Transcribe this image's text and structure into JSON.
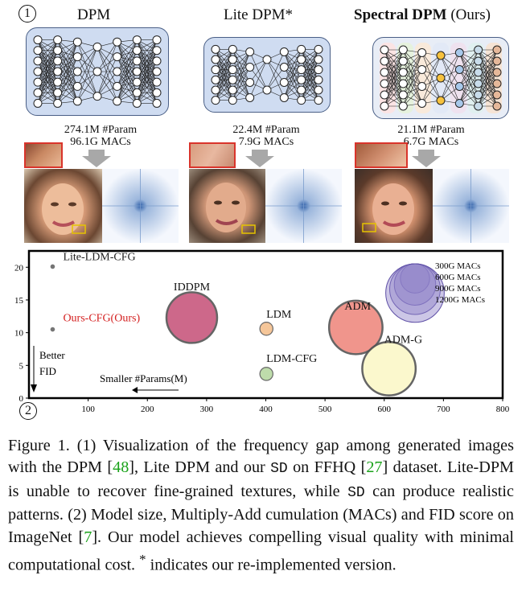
{
  "markers": {
    "part1": "1",
    "part2": "2"
  },
  "models": [
    {
      "title": "DPM",
      "params": "274.1M #Param",
      "macs": "96.1G MACs"
    },
    {
      "title": "Lite DPM*",
      "params": "22.4M #Param",
      "macs": "7.9G MACs"
    },
    {
      "title_bold": "Spectral DPM",
      "title_suffix": " (Ours)",
      "params": "21.1M #Param",
      "macs": "6.7G MACs"
    }
  ],
  "chart_data": {
    "type": "scatter",
    "xlim": [
      0,
      800
    ],
    "ylim": [
      0,
      22
    ],
    "x_ticks": [
      0,
      100,
      200,
      300,
      400,
      500,
      600,
      700,
      800
    ],
    "y_ticks": [
      0,
      5,
      10,
      15,
      20
    ],
    "points": [
      {
        "label": "Lite-LDM-CFG",
        "x": 40,
        "y": 20.1,
        "macs": 0,
        "color": "#666666",
        "label_color": "#222222"
      },
      {
        "label": "Ours-CFG(Ours)",
        "x": 40,
        "y": 10.5,
        "macs": 0,
        "color": "#666666",
        "label_color": "#d42020"
      },
      {
        "label": "IDDPM",
        "x": 275,
        "y": 12.3,
        "macs": 900,
        "color": "#c8587e"
      },
      {
        "label": "LDM",
        "x": 401,
        "y": 10.6,
        "macs": 60,
        "color": "#f4c08f"
      },
      {
        "label": "LDM-CFG",
        "x": 401,
        "y": 3.7,
        "macs": 60,
        "color": "#b7d9a2"
      },
      {
        "label": "ADM",
        "x": 552,
        "y": 10.8,
        "macs": 1000,
        "color": "#ef8a80"
      },
      {
        "label": "ADM-G",
        "x": 608,
        "y": 4.5,
        "macs": 1000,
        "color": "#fbf8c8"
      }
    ],
    "legend": [
      "300G MACs",
      "600G MACs",
      "900G MACs",
      "1200G MACs"
    ],
    "annotations": {
      "better": "Better",
      "fid": "FID",
      "smaller": "Smaller #Params(M)"
    }
  },
  "caption": {
    "p1": "Figure 1. (1) Visualization of the frequency gap among generated images with the DPM [",
    "r1": "48",
    "p2": "], Lite DPM and our ",
    "sd1": "SD",
    "p3": " on FFHQ [",
    "r2": "27",
    "p4": "] dataset. Lite-DPM is unable to recover fine-grained textures, while ",
    "sd2": "SD",
    "p5": " can produce realistic patterns. (2) Model size, Multiply-Add cumulation (MACs) and FID score on ImageNet [",
    "r3": "7",
    "p6": "]. Our model achieves compelling visual quality with minimal computational cost. ",
    "star": "*",
    "p7": " indicates our re-implemented version."
  }
}
